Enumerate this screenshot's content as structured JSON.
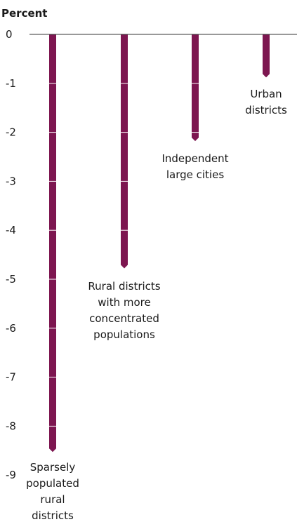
{
  "chart_data": {
    "type": "bar",
    "ylabel": "Percent",
    "ylim": [
      -9,
      0
    ],
    "yticks": [
      0,
      -1,
      -2,
      -3,
      -4,
      -5,
      -6,
      -7,
      -8,
      -9
    ],
    "grid": false,
    "categories": [
      "Sparsely populated rural districts",
      "Rural districts with more concentrated populations",
      "Independent large cities",
      "Urban districts"
    ],
    "category_label_lines": [
      [
        "Sparsely",
        "populated",
        "rural",
        "districts"
      ],
      [
        "Rural districts",
        "with more",
        "concentrated",
        "populations"
      ],
      [
        "Independent",
        "large cities"
      ],
      [
        "Urban",
        "districts"
      ]
    ],
    "values": [
      -8.5,
      -4.75,
      -2.15,
      -0.85
    ],
    "colors": {
      "bar": "#7d1650",
      "axis": "#333333",
      "bar_tick": "#ffffff"
    }
  }
}
